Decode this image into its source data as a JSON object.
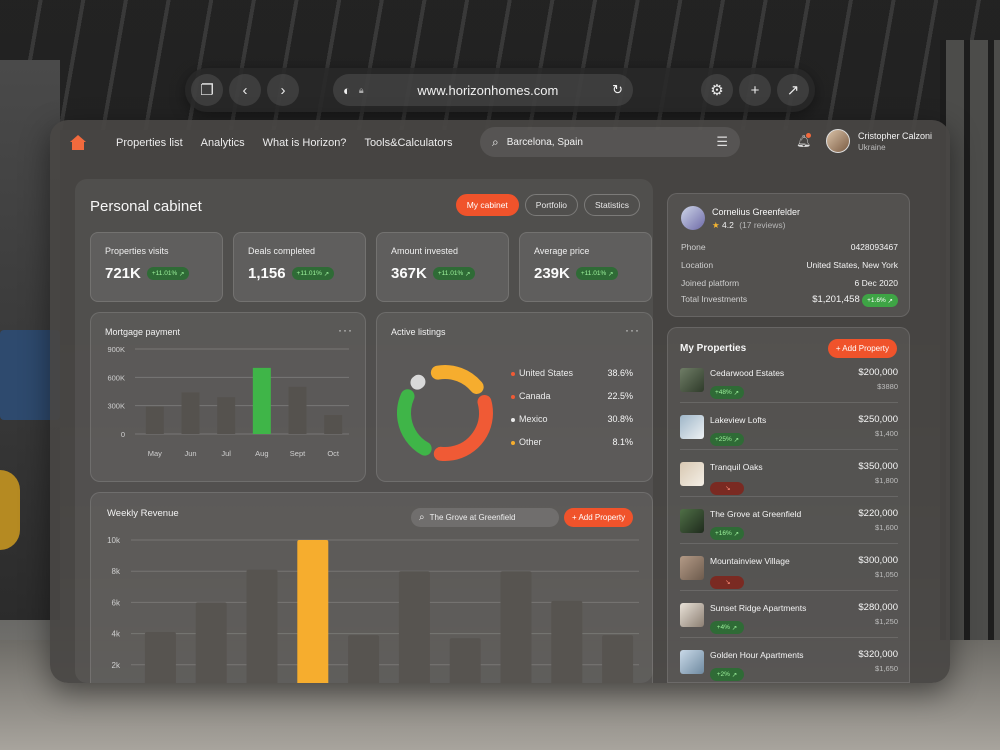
{
  "browser": {
    "url": "www.horizonhomes.com"
  },
  "nav": {
    "links": [
      "Properties list",
      "Analytics",
      "What is Horizon?",
      "Tools&Calculators"
    ],
    "search_value": "Barcelona, Spain"
  },
  "user": {
    "name": "Cristopher Calzoni",
    "country": "Ukraine"
  },
  "cabinet": {
    "title": "Personal cabinet",
    "tabs": [
      "My cabinet",
      "Portfolio",
      "Statistics"
    ],
    "active_tab": "My cabinet",
    "stats": [
      {
        "label": "Properties visits",
        "value": "721K",
        "change": "+11.01%"
      },
      {
        "label": "Deals completed",
        "value": "1,156",
        "change": "+11.01%"
      },
      {
        "label": "Amount invested",
        "value": "367K",
        "change": "+11.01%"
      },
      {
        "label": "Average price",
        "value": "239K",
        "change": "+11.01%"
      }
    ]
  },
  "mortgage": {
    "title": "Mortgage payment",
    "highlight_color": "#3fb548",
    "bar_color": "#55524e"
  },
  "listings": {
    "title": "Active listings",
    "items": [
      {
        "name": "United States",
        "value": "38.6%",
        "color": "#f05a35"
      },
      {
        "name": "Canada",
        "value": "22.5%",
        "color": "#f05a35"
      },
      {
        "name": "Mexico",
        "value": "30.8%",
        "color": "#eaeaea"
      },
      {
        "name": "Other",
        "value": "8.1%",
        "color": "#f6ad2e"
      }
    ]
  },
  "revenue": {
    "title": "Weekly Revenue",
    "search_value": "The Grove at Greenfield",
    "add_label": "+ Add Property",
    "highlight_color": "#f6ad2e"
  },
  "profile": {
    "name": "Cornelius Greenfelder",
    "rating": "4.2",
    "reviews": "(17 reviews)",
    "rows": [
      {
        "key": "Phone",
        "value": "0428093467"
      },
      {
        "key": "Location",
        "value": "United States, New York"
      },
      {
        "key": "Joined platform",
        "value": "6 Dec 2020"
      },
      {
        "key": "Total Investments",
        "value": "$1,201,458"
      }
    ],
    "investment_change": "+1.6%"
  },
  "my_properties": {
    "title": "My Properties",
    "add_label": "+ Add Property",
    "items": [
      {
        "name": "Cedarwood Estates",
        "change": "+48%",
        "trend": "up",
        "price": "$200,000",
        "sub": "$3880"
      },
      {
        "name": "Lakeview Lofts",
        "change": "+25%",
        "trend": "up",
        "price": "$250,000",
        "sub": "$1,400"
      },
      {
        "name": "Tranquil Oaks",
        "change": "",
        "trend": "down",
        "price": "$350,000",
        "sub": "$1,800"
      },
      {
        "name": "The Grove at Greenfield",
        "change": "+16%",
        "trend": "up",
        "price": "$220,000",
        "sub": "$1,600"
      },
      {
        "name": "Mountainview Village",
        "change": "",
        "trend": "down",
        "price": "$300,000",
        "sub": "$1,050"
      },
      {
        "name": "Sunset Ridge Apartments",
        "change": "+4%",
        "trend": "up",
        "price": "$280,000",
        "sub": "$1,250"
      },
      {
        "name": "Golden Hour Apartments",
        "change": "+2%",
        "trend": "up",
        "price": "$320,000",
        "sub": "$1,650"
      }
    ]
  },
  "chart_data": [
    {
      "type": "bar",
      "title": "Mortgage payment",
      "categories": [
        "May",
        "Jun",
        "Jul",
        "Aug",
        "Sept",
        "Oct"
      ],
      "values": [
        290,
        440,
        390,
        700,
        500,
        200
      ],
      "highlight_index": 3,
      "yticks": [
        "900K",
        "600K",
        "300K",
        "0"
      ],
      "ylim": [
        0,
        900
      ],
      "grid": true
    },
    {
      "type": "pie",
      "title": "Active listings",
      "labels": [
        "United States",
        "Canada",
        "Mexico",
        "Other"
      ],
      "values": [
        38.6,
        22.5,
        30.8,
        8.1
      ],
      "ring_colors": [
        "#f6ad2e",
        "#f05a35",
        "#3fb548",
        "#d9d9d9"
      ],
      "donut": true
    },
    {
      "type": "bar",
      "title": "Weekly Revenue",
      "values": [
        4.1,
        6.0,
        8.1,
        10.0,
        3.9,
        8.0,
        3.7,
        8.0,
        6.1,
        3.9
      ],
      "highlight_index": 3,
      "yticks": [
        "10k",
        "8k",
        "6k",
        "4k",
        "2k"
      ],
      "ylim": [
        0,
        10
      ],
      "grid": true
    }
  ]
}
